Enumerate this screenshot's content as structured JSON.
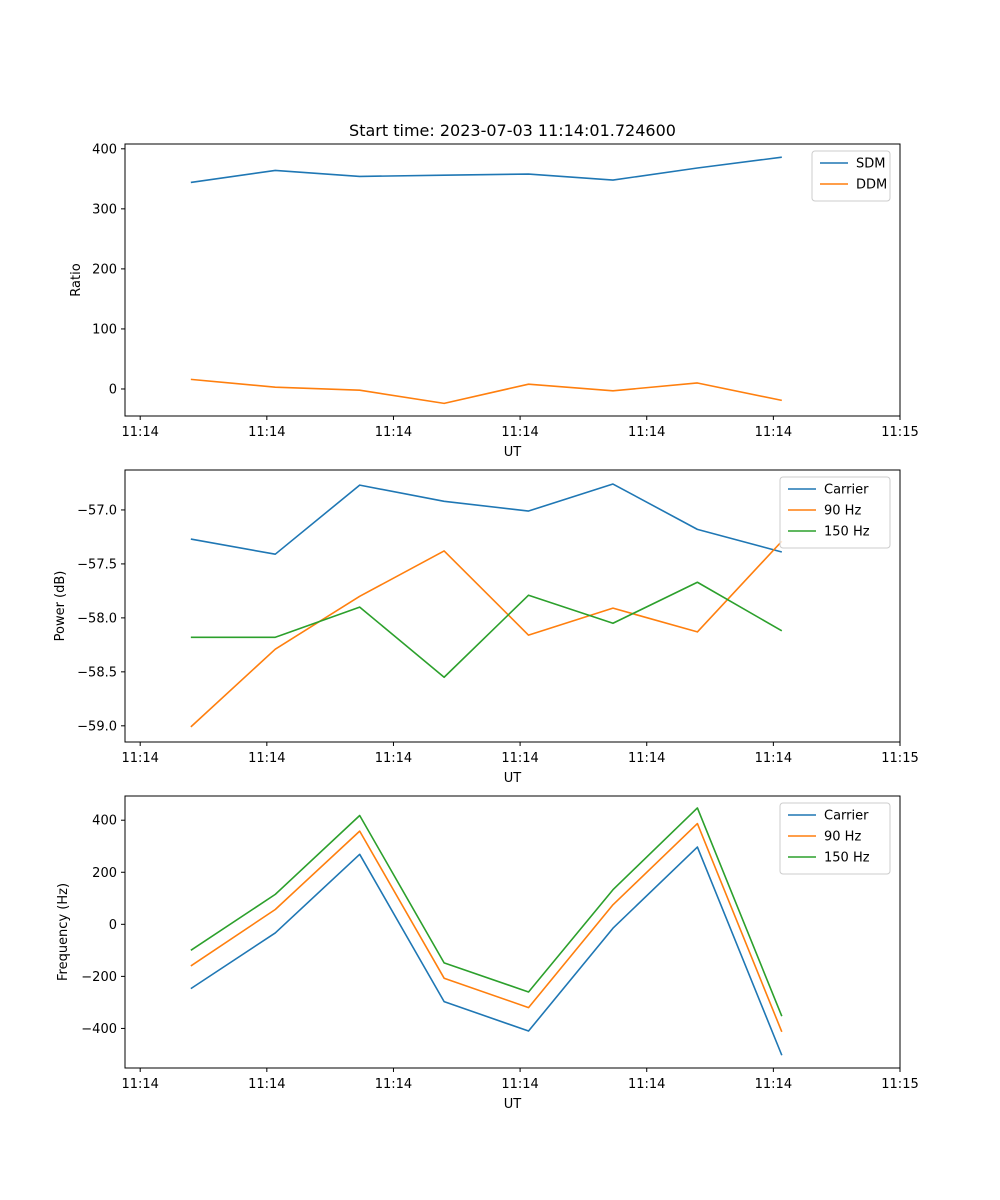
{
  "chart_data": [
    {
      "type": "line",
      "title": "Start time: 2023-07-03 11:14:01.724600",
      "xlabel": "UT",
      "ylabel": "Ratio",
      "xlim": [
        -0.18,
        9.0
      ],
      "ylim": [
        -45,
        408
      ],
      "x": [
        0.6,
        1.6,
        2.6,
        3.6,
        4.6,
        5.6,
        6.6,
        7.6
      ],
      "x_ticks": [
        0,
        1.5,
        3,
        4.5,
        6,
        7.5,
        9
      ],
      "x_tick_labels": [
        "11:14",
        "11:14",
        "11:14",
        "11:14",
        "11:14",
        "11:14",
        "11:15"
      ],
      "y_ticks": [
        0,
        100,
        200,
        300,
        400
      ],
      "y_tick_labels": [
        "0",
        "100",
        "200",
        "300",
        "400"
      ],
      "legend_position": "top-right",
      "series": [
        {
          "name": "SDM",
          "color": "#1f77b4",
          "values": [
            344,
            364,
            354,
            356,
            358,
            348,
            368,
            386
          ]
        },
        {
          "name": "DDM",
          "color": "#ff7f0e",
          "values": [
            16,
            3,
            -2,
            -24,
            8,
            -3,
            10,
            -19
          ]
        }
      ]
    },
    {
      "type": "line",
      "title": "",
      "xlabel": "UT",
      "ylabel": "Power (dB)",
      "xlim": [
        -0.18,
        9.0
      ],
      "ylim": [
        -59.15,
        -56.63
      ],
      "x": [
        0.6,
        1.6,
        2.6,
        3.6,
        4.6,
        5.6,
        6.6,
        7.6
      ],
      "x_ticks": [
        0,
        1.5,
        3,
        4.5,
        6,
        7.5,
        9
      ],
      "x_tick_labels": [
        "11:14",
        "11:14",
        "11:14",
        "11:14",
        "11:14",
        "11:14",
        "11:15"
      ],
      "y_ticks": [
        -59.0,
        -58.5,
        -58.0,
        -57.5,
        -57.0
      ],
      "y_tick_labels": [
        "−59.0",
        "−58.5",
        "−58.0",
        "−57.5",
        "−57.0"
      ],
      "legend_position": "top-right",
      "series": [
        {
          "name": "Carrier",
          "color": "#1f77b4",
          "values": [
            -57.27,
            -57.41,
            -56.77,
            -56.92,
            -57.01,
            -56.76,
            -57.18,
            -57.39
          ]
        },
        {
          "name": "90 Hz",
          "color": "#ff7f0e",
          "values": [
            -59.01,
            -58.29,
            -57.8,
            -57.38,
            -58.16,
            -57.91,
            -58.13,
            -57.29
          ]
        },
        {
          "name": "150 Hz",
          "color": "#2ca02c",
          "values": [
            -58.18,
            -58.18,
            -57.9,
            -58.55,
            -57.79,
            -58.05,
            -57.67,
            -58.12
          ]
        }
      ]
    },
    {
      "type": "line",
      "title": "",
      "xlabel": "UT",
      "ylabel": "Frequency (Hz)",
      "xlim": [
        -0.18,
        9.0
      ],
      "ylim": [
        -552,
        493
      ],
      "x": [
        0.6,
        1.6,
        2.6,
        3.6,
        4.6,
        5.6,
        6.6,
        7.6
      ],
      "x_ticks": [
        0,
        1.5,
        3,
        4.5,
        6,
        7.5,
        9
      ],
      "x_tick_labels": [
        "11:14",
        "11:14",
        "11:14",
        "11:14",
        "11:14",
        "11:14",
        "11:15"
      ],
      "y_ticks": [
        -400,
        -200,
        0,
        200,
        400
      ],
      "y_tick_labels": [
        "−400",
        "−200",
        "0",
        "200",
        "400"
      ],
      "legend_position": "top-right",
      "series": [
        {
          "name": "Carrier",
          "color": "#1f77b4",
          "values": [
            -247,
            -33,
            269,
            -297,
            -410,
            -15,
            297,
            -503
          ]
        },
        {
          "name": "90 Hz",
          "color": "#ff7f0e",
          "values": [
            -160,
            57,
            358,
            -207,
            -320,
            75,
            387,
            -413
          ]
        },
        {
          "name": "150 Hz",
          "color": "#2ca02c",
          "values": [
            -100,
            115,
            418,
            -148,
            -260,
            133,
            447,
            -353
          ]
        }
      ]
    }
  ]
}
